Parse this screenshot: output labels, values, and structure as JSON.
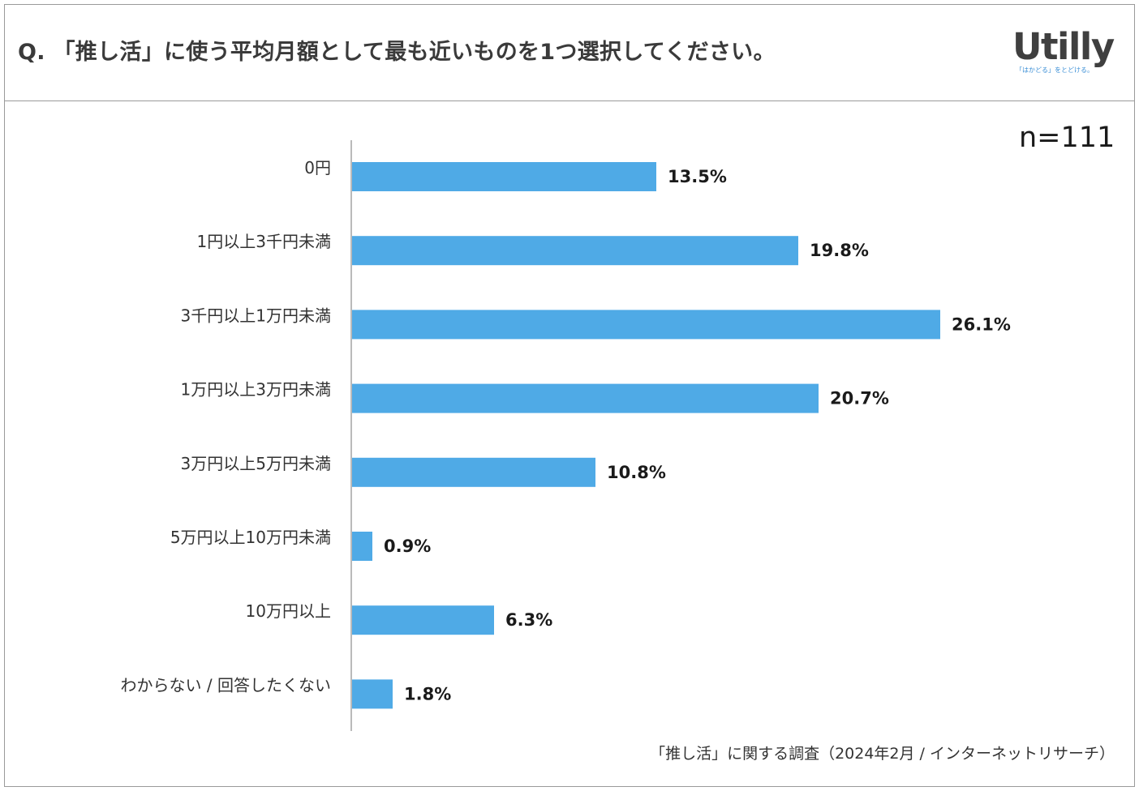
{
  "header": {
    "question": "Q. 「推し活」に使う平均月額として最も近いものを1つ選択してください。"
  },
  "logo": {
    "wordmark": "Utilly",
    "tagline": "「はかどる」をとどける。",
    "icon": "utilly-logo"
  },
  "sample": {
    "label": "n=111"
  },
  "footer": {
    "source": "「推し活」に関する調査（2024年2月 / インターネットリサーチ）"
  },
  "chart_data": {
    "type": "bar",
    "orientation": "horizontal",
    "categories": [
      "0円",
      "1円以上3千円未満",
      "3千円以上1万円未満",
      "1万円以上3万円未満",
      "3万円以上5万円未満",
      "5万円以上10万円未満",
      "10万円以上",
      "わからない / 回答したくない"
    ],
    "values": [
      13.5,
      19.8,
      26.1,
      20.7,
      10.8,
      0.9,
      6.3,
      1.8
    ],
    "value_labels": [
      "13.5%",
      "19.8%",
      "26.1%",
      "20.7%",
      "10.8%",
      "0.9%",
      "6.3%",
      "1.8%"
    ],
    "unit": "%",
    "xlim": [
      0,
      30
    ],
    "bar_color": "#4faae6",
    "grid": false,
    "legend": "none"
  }
}
